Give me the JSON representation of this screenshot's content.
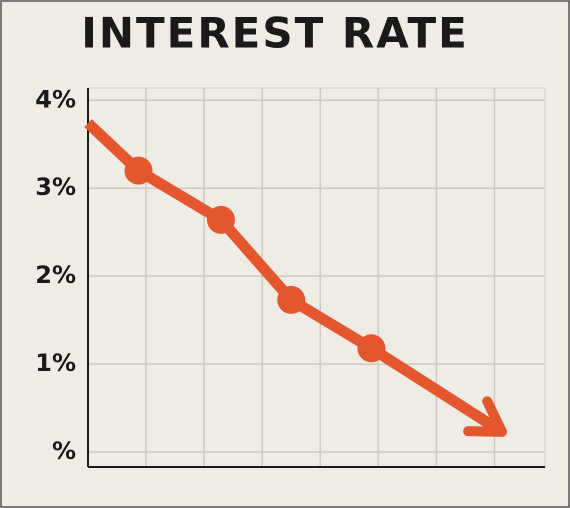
{
  "chart_data": {
    "type": "line",
    "title": "INTEREST RATE",
    "x": [
      0,
      0.87,
      2.29,
      3.5,
      4.88,
      7.13
    ],
    "series": [
      {
        "name": "Interest rate",
        "color": "#e4572e",
        "values": [
          3.74,
          3.2,
          2.64,
          1.73,
          1.18,
          0.23
        ]
      }
    ],
    "xlim": [
      0,
      7.87
    ],
    "xticks": [
      0,
      1,
      2,
      3,
      4,
      5,
      6,
      7
    ],
    "ylim": [
      -0.17,
      4.14
    ],
    "yticks": [
      {
        "value": 0,
        "label": "%"
      },
      {
        "value": 1,
        "label": "1%"
      },
      {
        "value": 2,
        "label": "2%"
      },
      {
        "value": 3,
        "label": "3%"
      },
      {
        "value": 4,
        "label": "4%"
      }
    ],
    "grid": true
  }
}
